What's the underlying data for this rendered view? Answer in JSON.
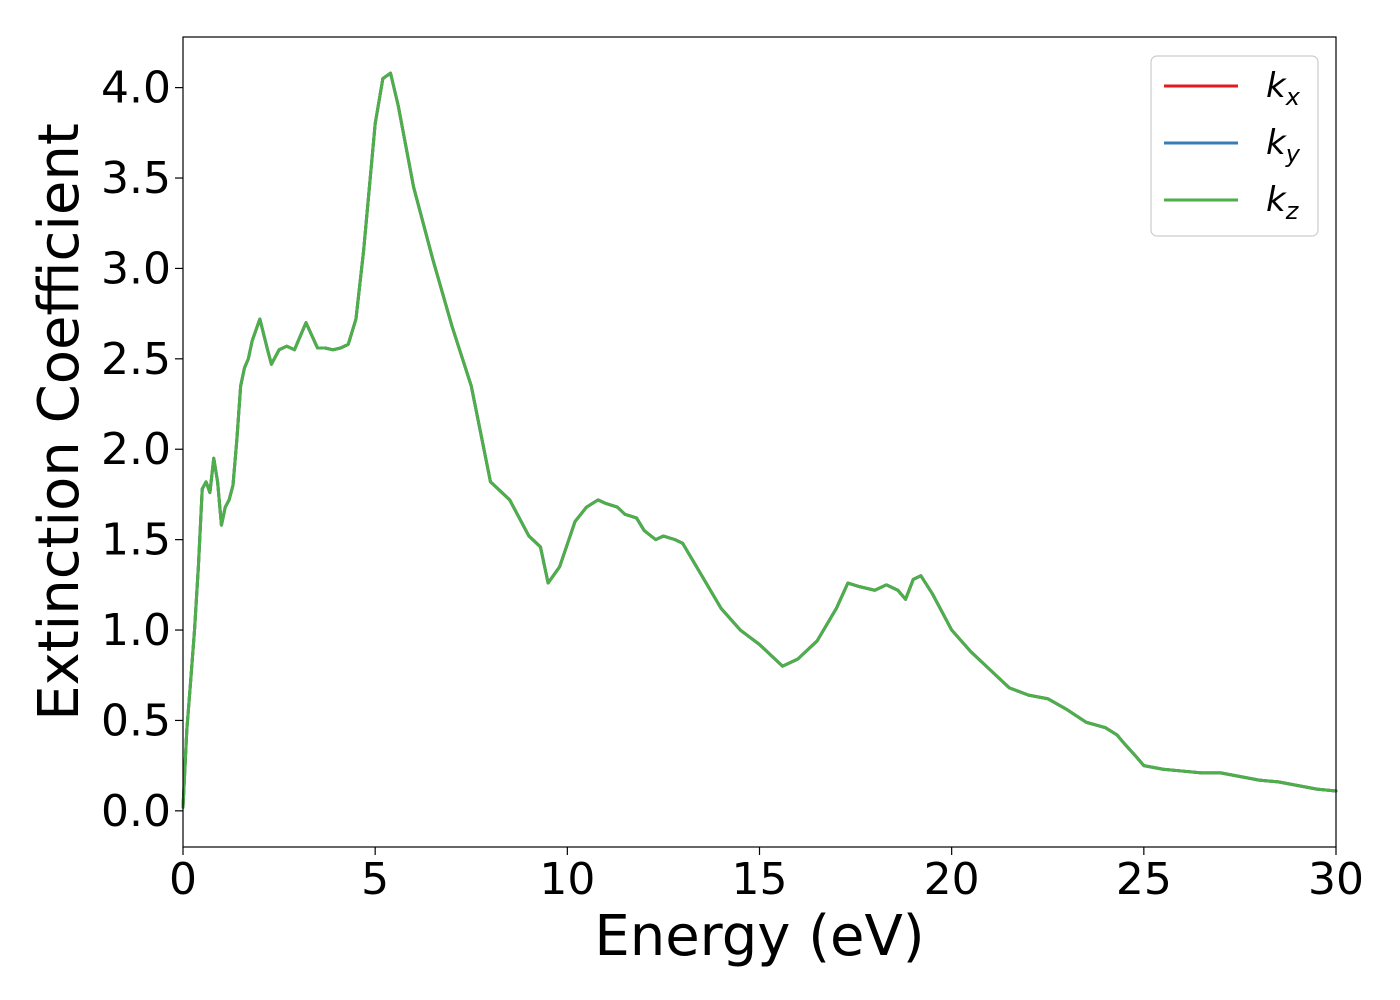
{
  "chart_data": {
    "type": "line",
    "title": "",
    "xlabel": "Energy (eV)",
    "ylabel": "Extinction Coefficient",
    "xlim": [
      0,
      30
    ],
    "ylim": [
      -0.2,
      4.28
    ],
    "xticks": [
      0,
      5,
      10,
      15,
      20,
      25,
      30
    ],
    "xtick_labels": [
      "0",
      "5",
      "10",
      "15",
      "20",
      "25",
      "30"
    ],
    "yticks": [
      0.0,
      0.5,
      1.0,
      1.5,
      2.0,
      2.5,
      3.0,
      3.5,
      4.0
    ],
    "ytick_labels": [
      "0.0",
      "0.5",
      "1.0",
      "1.5",
      "2.0",
      "2.5",
      "3.0",
      "3.5",
      "4.0"
    ],
    "grid": false,
    "legend_position": "top-right",
    "series": [
      {
        "name": "k",
        "subscript": "x",
        "color": "#e41a1c",
        "x": [
          0,
          0.1,
          0.2,
          0.3,
          0.4,
          0.5,
          0.6,
          0.7,
          0.8,
          0.9,
          1.0,
          1.1,
          1.2,
          1.3,
          1.4,
          1.5,
          1.6,
          1.7,
          1.8,
          2.0,
          2.2,
          2.3,
          2.5,
          2.7,
          2.9,
          3.0,
          3.2,
          3.5,
          3.7,
          3.9,
          4.1,
          4.3,
          4.5,
          4.7,
          5.0,
          5.2,
          5.4,
          5.6,
          6.0,
          6.5,
          7.0,
          7.5,
          8.0,
          8.2,
          8.5,
          9.0,
          9.3,
          9.5,
          9.8,
          10.2,
          10.5,
          10.8,
          11.0,
          11.3,
          11.5,
          11.8,
          12.0,
          12.3,
          12.5,
          12.8,
          13.0,
          13.5,
          14.0,
          14.5,
          15.0,
          15.3,
          15.6,
          16.0,
          16.5,
          17.0,
          17.3,
          17.6,
          18.0,
          18.3,
          18.6,
          18.8,
          19.0,
          19.2,
          19.5,
          20.0,
          20.5,
          21.0,
          21.5,
          22.0,
          22.5,
          23.0,
          23.5,
          24.0,
          24.3,
          24.5,
          24.8,
          25.0,
          25.5,
          26.0,
          26.5,
          27.0,
          27.5,
          28.0,
          28.5,
          29.0,
          29.5,
          30.0
        ],
        "values": [
          0.02,
          0.45,
          0.72,
          1.0,
          1.35,
          1.78,
          1.82,
          1.76,
          1.95,
          1.82,
          1.58,
          1.68,
          1.72,
          1.8,
          2.05,
          2.35,
          2.45,
          2.5,
          2.6,
          2.72,
          2.55,
          2.47,
          2.55,
          2.57,
          2.55,
          2.6,
          2.7,
          2.56,
          2.56,
          2.55,
          2.56,
          2.58,
          2.72,
          3.1,
          3.8,
          4.05,
          4.08,
          3.9,
          3.45,
          3.05,
          2.68,
          2.35,
          1.82,
          1.78,
          1.72,
          1.52,
          1.46,
          1.26,
          1.35,
          1.6,
          1.68,
          1.72,
          1.7,
          1.68,
          1.64,
          1.62,
          1.55,
          1.5,
          1.52,
          1.5,
          1.48,
          1.3,
          1.12,
          1.0,
          0.92,
          0.86,
          0.8,
          0.84,
          0.94,
          1.12,
          1.26,
          1.24,
          1.22,
          1.25,
          1.22,
          1.17,
          1.28,
          1.3,
          1.2,
          1.0,
          0.88,
          0.78,
          0.68,
          0.64,
          0.62,
          0.56,
          0.49,
          0.46,
          0.42,
          0.37,
          0.3,
          0.25,
          0.23,
          0.22,
          0.21,
          0.21,
          0.19,
          0.17,
          0.16,
          0.14,
          0.12,
          0.11
        ]
      },
      {
        "name": "k",
        "subscript": "y",
        "color": "#377eb8",
        "x": [
          0,
          0.1,
          0.2,
          0.3,
          0.4,
          0.5,
          0.6,
          0.7,
          0.8,
          0.9,
          1.0,
          1.1,
          1.2,
          1.3,
          1.4,
          1.5,
          1.6,
          1.7,
          1.8,
          2.0,
          2.2,
          2.3,
          2.5,
          2.7,
          2.9,
          3.0,
          3.2,
          3.5,
          3.7,
          3.9,
          4.1,
          4.3,
          4.5,
          4.7,
          5.0,
          5.2,
          5.4,
          5.6,
          6.0,
          6.5,
          7.0,
          7.5,
          8.0,
          8.2,
          8.5,
          9.0,
          9.3,
          9.5,
          9.8,
          10.2,
          10.5,
          10.8,
          11.0,
          11.3,
          11.5,
          11.8,
          12.0,
          12.3,
          12.5,
          12.8,
          13.0,
          13.5,
          14.0,
          14.5,
          15.0,
          15.3,
          15.6,
          16.0,
          16.5,
          17.0,
          17.3,
          17.6,
          18.0,
          18.3,
          18.6,
          18.8,
          19.0,
          19.2,
          19.5,
          20.0,
          20.5,
          21.0,
          21.5,
          22.0,
          22.5,
          23.0,
          23.5,
          24.0,
          24.3,
          24.5,
          24.8,
          25.0,
          25.5,
          26.0,
          26.5,
          27.0,
          27.5,
          28.0,
          28.5,
          29.0,
          29.5,
          30.0
        ],
        "values": [
          0.02,
          0.45,
          0.72,
          1.0,
          1.35,
          1.78,
          1.82,
          1.76,
          1.95,
          1.82,
          1.58,
          1.68,
          1.72,
          1.8,
          2.05,
          2.35,
          2.45,
          2.5,
          2.6,
          2.72,
          2.55,
          2.47,
          2.55,
          2.57,
          2.55,
          2.6,
          2.7,
          2.56,
          2.56,
          2.55,
          2.56,
          2.58,
          2.72,
          3.1,
          3.8,
          4.05,
          4.08,
          3.9,
          3.45,
          3.05,
          2.68,
          2.35,
          1.82,
          1.78,
          1.72,
          1.52,
          1.46,
          1.26,
          1.35,
          1.6,
          1.68,
          1.72,
          1.7,
          1.68,
          1.64,
          1.62,
          1.55,
          1.5,
          1.52,
          1.5,
          1.48,
          1.3,
          1.12,
          1.0,
          0.92,
          0.86,
          0.8,
          0.84,
          0.94,
          1.12,
          1.26,
          1.24,
          1.22,
          1.25,
          1.22,
          1.17,
          1.28,
          1.3,
          1.2,
          1.0,
          0.88,
          0.78,
          0.68,
          0.64,
          0.62,
          0.56,
          0.49,
          0.46,
          0.42,
          0.37,
          0.3,
          0.25,
          0.23,
          0.22,
          0.21,
          0.21,
          0.19,
          0.17,
          0.16,
          0.14,
          0.12,
          0.11
        ]
      },
      {
        "name": "k",
        "subscript": "z",
        "color": "#4daf4a",
        "x": [
          0,
          0.1,
          0.2,
          0.3,
          0.4,
          0.5,
          0.6,
          0.7,
          0.8,
          0.9,
          1.0,
          1.1,
          1.2,
          1.3,
          1.4,
          1.5,
          1.6,
          1.7,
          1.8,
          2.0,
          2.2,
          2.3,
          2.5,
          2.7,
          2.9,
          3.0,
          3.2,
          3.5,
          3.7,
          3.9,
          4.1,
          4.3,
          4.5,
          4.7,
          5.0,
          5.2,
          5.4,
          5.6,
          6.0,
          6.5,
          7.0,
          7.5,
          8.0,
          8.2,
          8.5,
          9.0,
          9.3,
          9.5,
          9.8,
          10.2,
          10.5,
          10.8,
          11.0,
          11.3,
          11.5,
          11.8,
          12.0,
          12.3,
          12.5,
          12.8,
          13.0,
          13.5,
          14.0,
          14.5,
          15.0,
          15.3,
          15.6,
          16.0,
          16.5,
          17.0,
          17.3,
          17.6,
          18.0,
          18.3,
          18.6,
          18.8,
          19.0,
          19.2,
          19.5,
          20.0,
          20.5,
          21.0,
          21.5,
          22.0,
          22.5,
          23.0,
          23.5,
          24.0,
          24.3,
          24.5,
          24.8,
          25.0,
          25.5,
          26.0,
          26.5,
          27.0,
          27.5,
          28.0,
          28.5,
          29.0,
          29.5,
          30.0
        ],
        "values": [
          0.02,
          0.45,
          0.72,
          1.0,
          1.35,
          1.78,
          1.82,
          1.76,
          1.95,
          1.82,
          1.58,
          1.68,
          1.72,
          1.8,
          2.05,
          2.35,
          2.45,
          2.5,
          2.6,
          2.72,
          2.55,
          2.47,
          2.55,
          2.57,
          2.55,
          2.6,
          2.7,
          2.56,
          2.56,
          2.55,
          2.56,
          2.58,
          2.72,
          3.1,
          3.8,
          4.05,
          4.08,
          3.9,
          3.45,
          3.05,
          2.68,
          2.35,
          1.82,
          1.78,
          1.72,
          1.52,
          1.46,
          1.26,
          1.35,
          1.6,
          1.68,
          1.72,
          1.7,
          1.68,
          1.64,
          1.62,
          1.55,
          1.5,
          1.52,
          1.5,
          1.48,
          1.3,
          1.12,
          1.0,
          0.92,
          0.86,
          0.8,
          0.84,
          0.94,
          1.12,
          1.26,
          1.24,
          1.22,
          1.25,
          1.22,
          1.17,
          1.28,
          1.3,
          1.2,
          1.0,
          0.88,
          0.78,
          0.68,
          0.64,
          0.62,
          0.56,
          0.49,
          0.46,
          0.42,
          0.37,
          0.3,
          0.25,
          0.23,
          0.22,
          0.21,
          0.21,
          0.19,
          0.17,
          0.16,
          0.14,
          0.12,
          0.11
        ]
      }
    ]
  }
}
